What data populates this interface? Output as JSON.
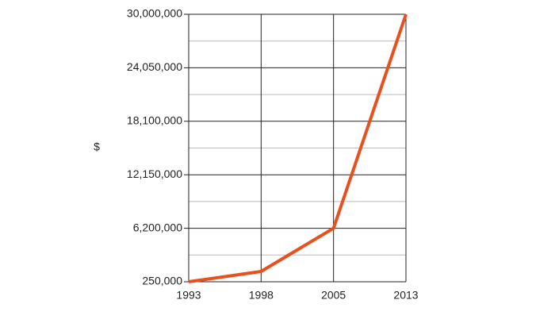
{
  "chart_data": {
    "type": "line",
    "y_label": "$",
    "categories": [
      "1993",
      "1998",
      "2005",
      "2013"
    ],
    "series": [
      {
        "name": "$",
        "color": "#e8501e",
        "values": [
          250000,
          1400000,
          6200000,
          30000000
        ]
      }
    ],
    "ylim": [
      250000,
      30000000
    ],
    "yticks": [
      {
        "value": 250000,
        "label": "250,000"
      },
      {
        "value": 6200000,
        "label": "6,200,000"
      },
      {
        "value": 12150000,
        "label": "12,150,000"
      },
      {
        "value": 18100000,
        "label": "18,100,000"
      },
      {
        "value": 24050000,
        "label": "24,050,000"
      },
      {
        "value": 30000000,
        "label": "30,000,000"
      }
    ],
    "grid": true
  }
}
